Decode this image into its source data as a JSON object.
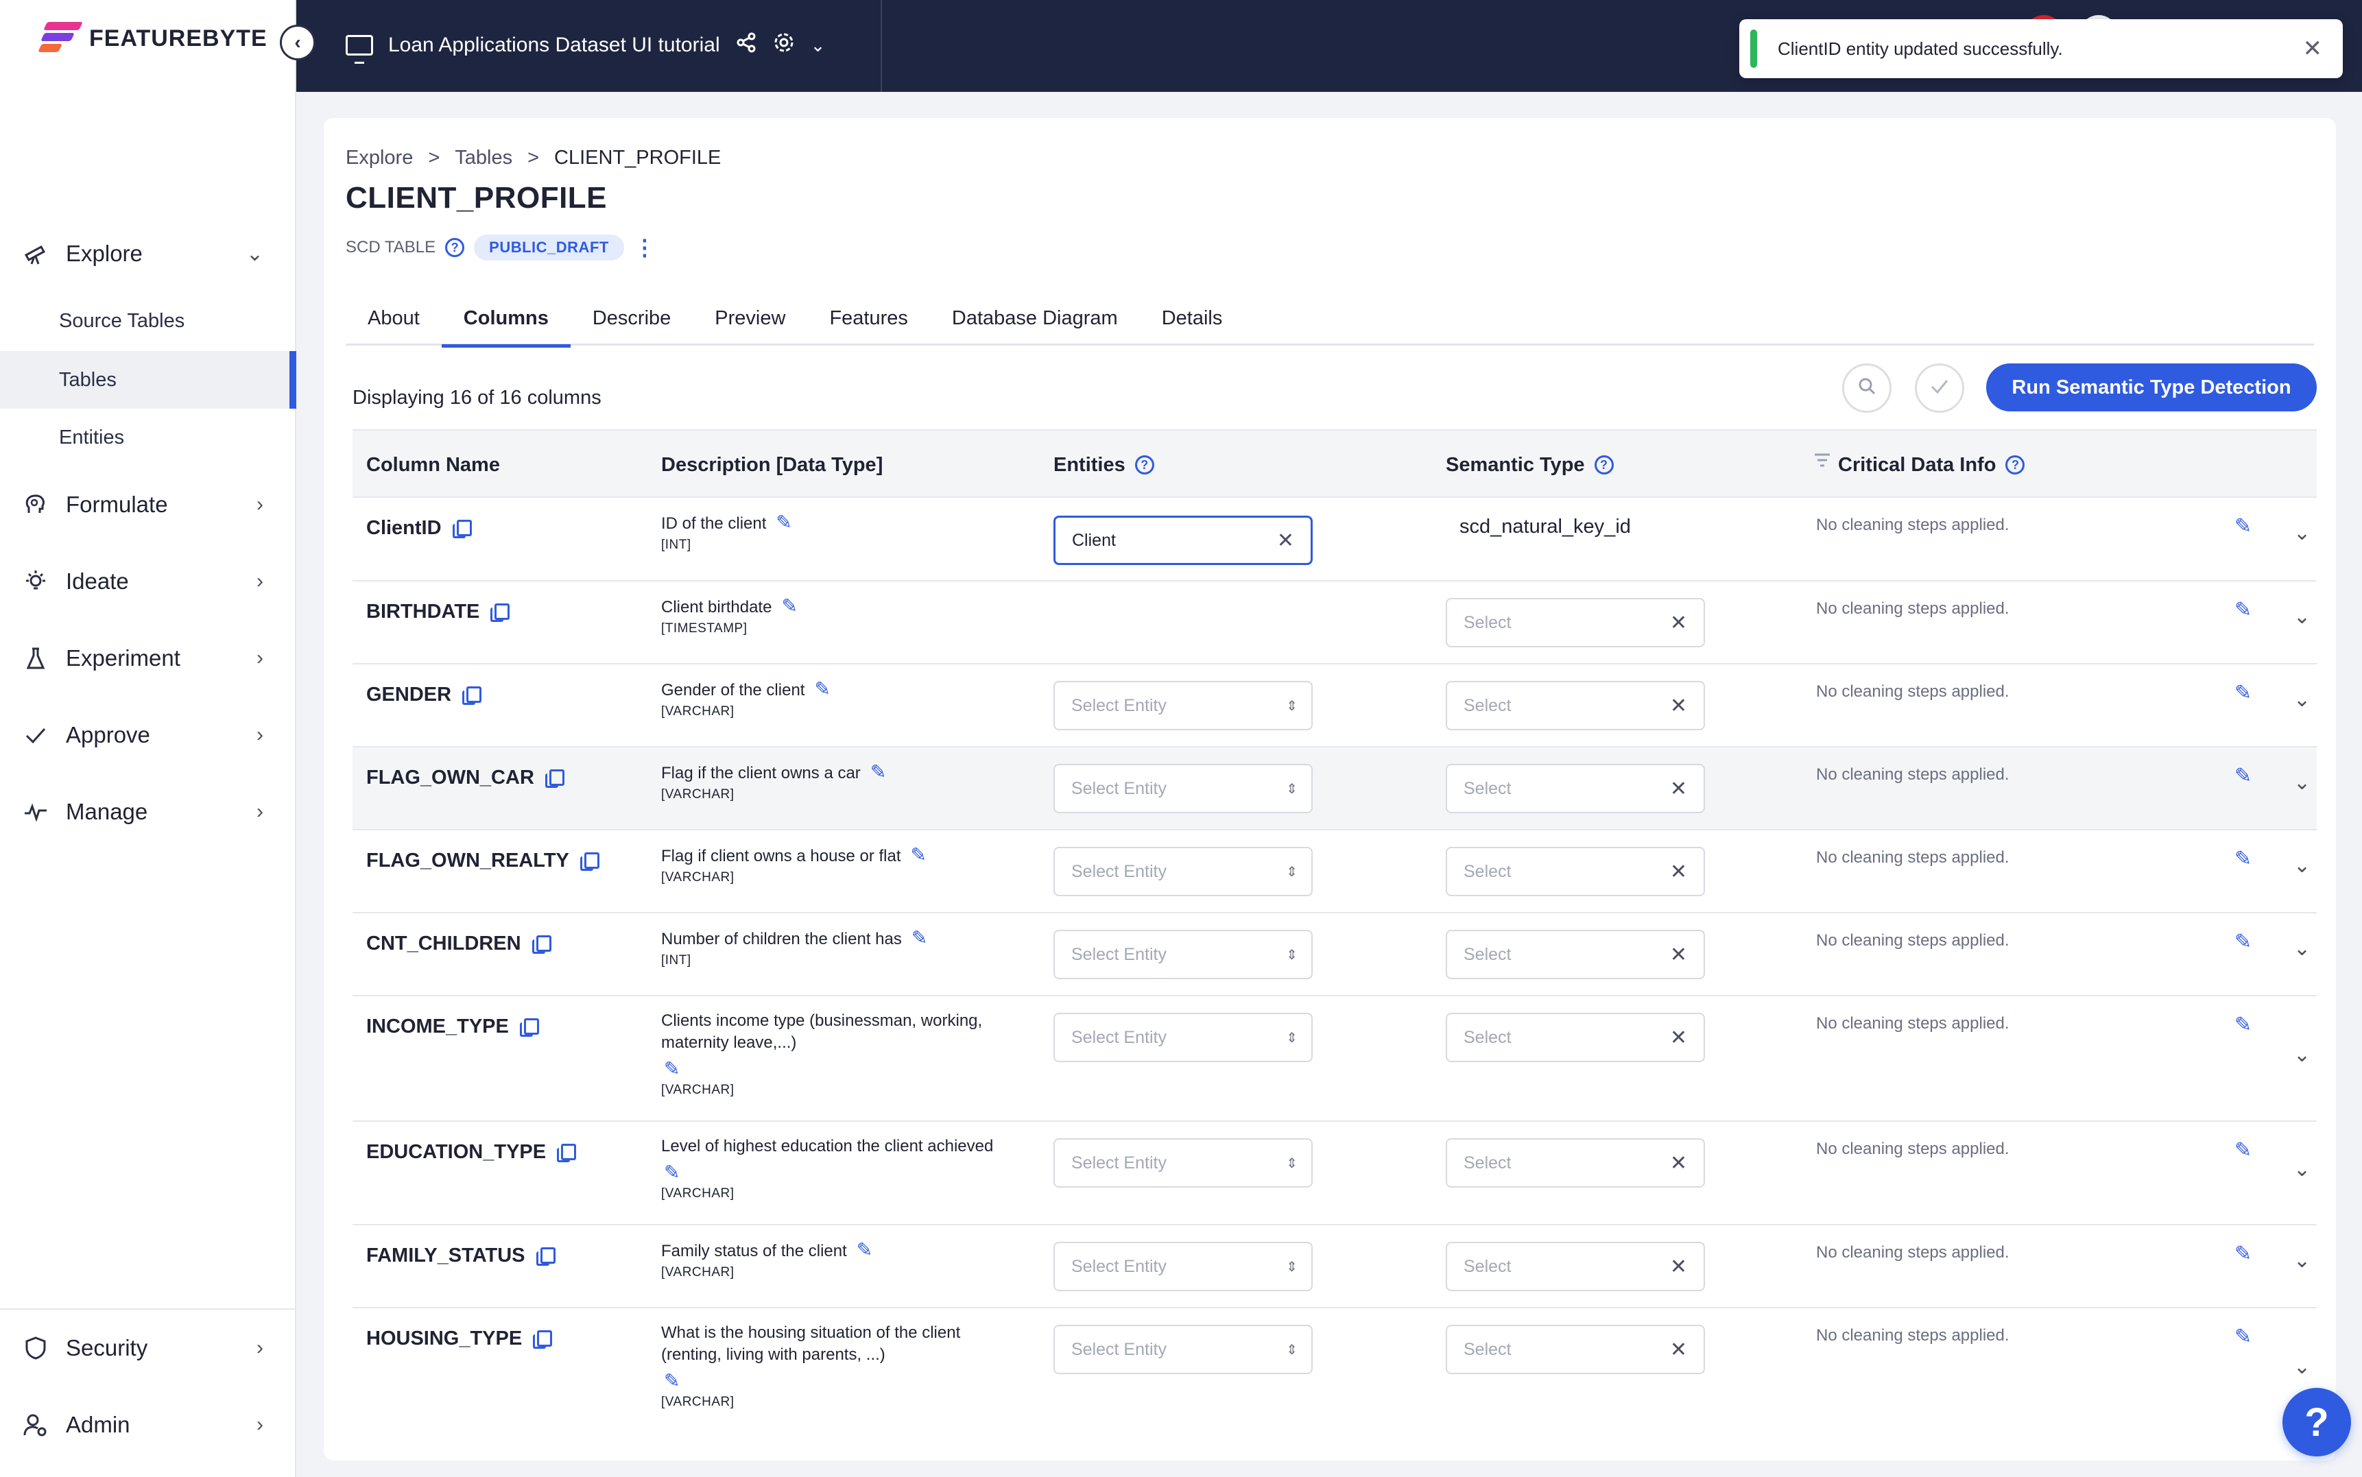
{
  "brand": {
    "name": "FEATUREBYTE"
  },
  "sidebar": {
    "explore": {
      "label": "Explore",
      "icon": "telescope-icon"
    },
    "explore_sub": [
      {
        "label": "Source Tables"
      },
      {
        "label": "Tables",
        "active": true
      },
      {
        "label": "Entities"
      }
    ],
    "items": [
      {
        "label": "Formulate",
        "icon": "brain-icon"
      },
      {
        "label": "Ideate",
        "icon": "lightbulb-icon"
      },
      {
        "label": "Experiment",
        "icon": "flask-icon"
      },
      {
        "label": "Approve",
        "icon": "check-icon"
      },
      {
        "label": "Manage",
        "icon": "pulse-icon"
      }
    ],
    "bottom": [
      {
        "label": "Security",
        "icon": "shield-icon"
      },
      {
        "label": "Admin",
        "icon": "user-gear-icon"
      }
    ]
  },
  "topbar": {
    "project_title": "Loan Applications Dataset UI tutorial"
  },
  "toast": {
    "message": "ClientID entity updated successfully.",
    "accent": "#2fb55a"
  },
  "page": {
    "breadcrumb": [
      "Explore",
      "Tables",
      "CLIENT_PROFILE"
    ],
    "title": "CLIENT_PROFILE",
    "table_type": "SCD TABLE",
    "status_badge": "PUBLIC_DRAFT",
    "tabs": [
      "About",
      "Columns",
      "Describe",
      "Preview",
      "Features",
      "Database Diagram",
      "Details"
    ],
    "active_tab": "Columns",
    "displaying": "Displaying 16 of 16 columns",
    "run_button": "Run Semantic Type Detection"
  },
  "table": {
    "headers": {
      "column_name": "Column Name",
      "description": "Description [Data Type]",
      "entities": "Entities",
      "semantic_type": "Semantic Type",
      "critical": "Critical Data Info"
    },
    "entity_placeholder": "Select Entity",
    "semantic_placeholder": "Select",
    "rows": [
      {
        "name": "ClientID",
        "desc": "ID of the client",
        "dtype": "[INT]",
        "entity": "Client",
        "semantic": "scd_natural_key_id",
        "critical": "No cleaning steps applied."
      },
      {
        "name": "BIRTHDATE",
        "desc": "Client birthdate",
        "dtype": "[TIMESTAMP]",
        "entity": "",
        "semantic": "",
        "critical": "No cleaning steps applied."
      },
      {
        "name": "GENDER",
        "desc": "Gender of the client",
        "dtype": "[VARCHAR]",
        "entity": "",
        "semantic": "",
        "critical": "No cleaning steps applied."
      },
      {
        "name": "FLAG_OWN_CAR",
        "desc": "Flag if the client owns a car",
        "dtype": "[VARCHAR]",
        "entity": "",
        "semantic": "",
        "critical": "No cleaning steps applied."
      },
      {
        "name": "FLAG_OWN_REALTY",
        "desc": "Flag if client owns a house or flat",
        "dtype": "[VARCHAR]",
        "entity": "",
        "semantic": "",
        "critical": "No cleaning steps applied."
      },
      {
        "name": "CNT_CHILDREN",
        "desc": "Number of children the client has",
        "dtype": "[INT]",
        "entity": "",
        "semantic": "",
        "critical": "No cleaning steps applied."
      },
      {
        "name": "INCOME_TYPE",
        "desc": "Clients income type (businessman, working, maternity leave,...)",
        "dtype": "[VARCHAR]",
        "entity": "",
        "semantic": "",
        "critical": "No cleaning steps applied."
      },
      {
        "name": "EDUCATION_TYPE",
        "desc": "Level of highest education the client achieved",
        "dtype": "[VARCHAR]",
        "entity": "",
        "semantic": "",
        "critical": "No cleaning steps applied."
      },
      {
        "name": "FAMILY_STATUS",
        "desc": "Family status of the client",
        "dtype": "[VARCHAR]",
        "entity": "",
        "semantic": "",
        "critical": "No cleaning steps applied."
      },
      {
        "name": "HOUSING_TYPE",
        "desc": "What is the housing situation of the client (renting, living with parents, ...)",
        "dtype": "[VARCHAR]",
        "entity": "",
        "semantic": "",
        "critical": "No cleaning steps applied."
      }
    ]
  },
  "colors": {
    "accent": "#2f5be0",
    "topbar": "#1e2540",
    "success": "#2fb55a"
  }
}
